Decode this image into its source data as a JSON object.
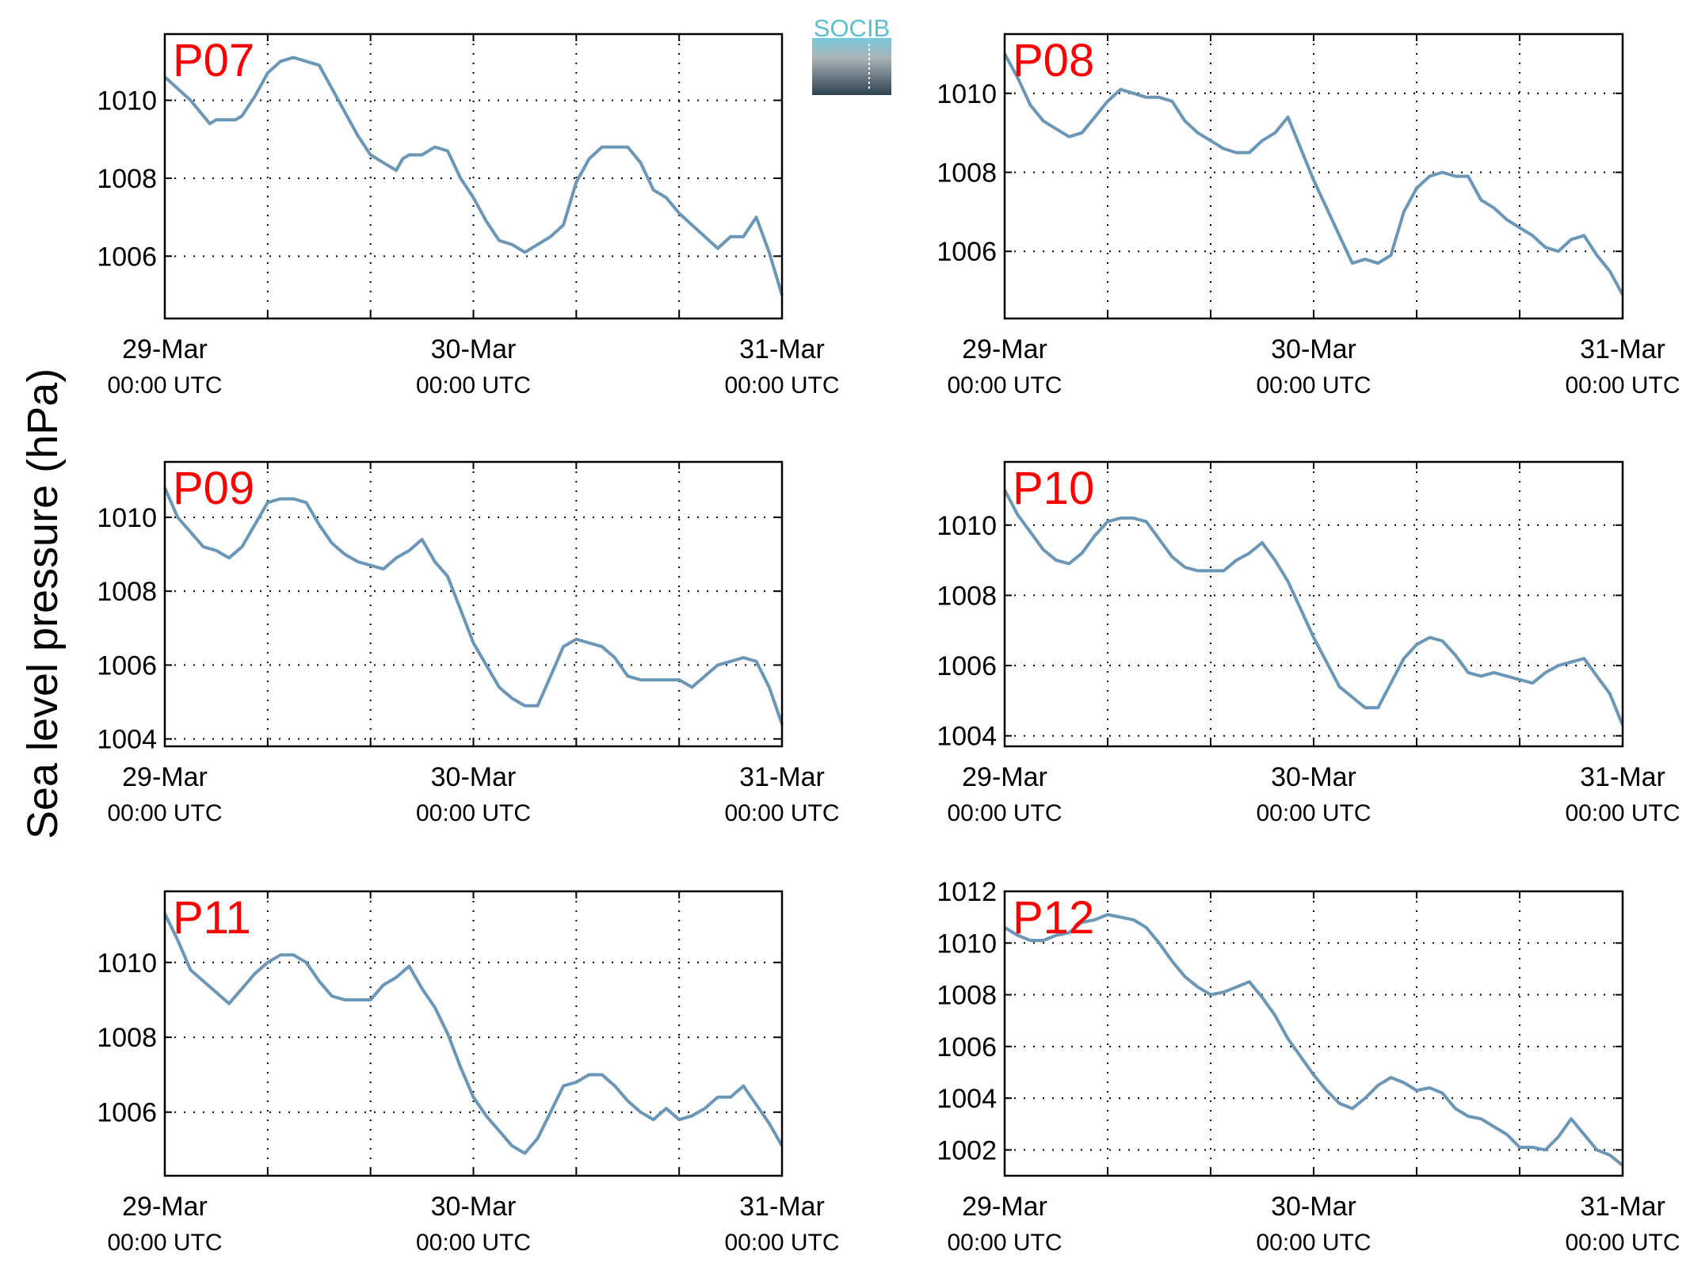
{
  "figure": {
    "ylabel": "Sea level pressure (hPa)",
    "logo_text": "SOCIB",
    "line_color": "#6a96b8",
    "label_color": "#ff0000"
  },
  "chart_data": [
    {
      "type": "line",
      "name": "P07",
      "x_ticks": [
        {
          "day": "29-Mar",
          "time": "00:00 UTC"
        },
        {
          "day": "30-Mar",
          "time": "00:00 UTC"
        },
        {
          "day": "31-Mar",
          "time": "00:00 UTC"
        }
      ],
      "xlim": [
        0,
        48
      ],
      "ylim": [
        1004.4,
        1011.7
      ],
      "yticks": [
        1006,
        1008,
        1010
      ],
      "x": [
        0,
        1,
        2,
        3,
        3.5,
        4,
        5,
        5.5,
        6,
        7,
        8,
        9,
        10,
        11,
        12,
        13,
        14,
        15,
        16,
        17,
        18,
        18.5,
        19,
        20,
        21,
        22,
        23,
        24,
        25,
        26,
        27,
        28,
        29,
        30,
        31,
        32,
        33,
        34,
        35,
        36,
        37,
        38,
        39,
        40,
        41,
        42,
        43,
        44,
        45,
        46,
        47,
        48
      ],
      "y": [
        1010.6,
        1010.3,
        1010.0,
        1009.6,
        1009.4,
        1009.5,
        1009.5,
        1009.5,
        1009.6,
        1010.1,
        1010.7,
        1011.0,
        1011.1,
        1011.0,
        1010.9,
        1010.3,
        1009.7,
        1009.1,
        1008.6,
        1008.4,
        1008.2,
        1008.5,
        1008.6,
        1008.6,
        1008.8,
        1008.7,
        1008.0,
        1007.5,
        1006.9,
        1006.4,
        1006.3,
        1006.1,
        1006.3,
        1006.5,
        1006.8,
        1007.9,
        1008.5,
        1008.8,
        1008.8,
        1008.8,
        1008.4,
        1007.7,
        1007.5,
        1007.1,
        1006.8,
        1006.5,
        1006.2,
        1006.5,
        1006.5,
        1007.0,
        1006.1,
        1005.0
      ]
    },
    {
      "type": "line",
      "name": "P08",
      "x_ticks": [
        {
          "day": "29-Mar",
          "time": "00:00 UTC"
        },
        {
          "day": "30-Mar",
          "time": "00:00 UTC"
        },
        {
          "day": "31-Mar",
          "time": "00:00 UTC"
        }
      ],
      "xlim": [
        0,
        48
      ],
      "ylim": [
        1004.3,
        1011.5
      ],
      "yticks": [
        1006,
        1008,
        1010
      ],
      "x": [
        0,
        1,
        2,
        3,
        4,
        5,
        6,
        7,
        8,
        9,
        10,
        11,
        12,
        13,
        14,
        15,
        16,
        17,
        18,
        19,
        20,
        21,
        21.5,
        22,
        23,
        24,
        25,
        26,
        27,
        28,
        29,
        30,
        31,
        32,
        33,
        34,
        35,
        36,
        37,
        38,
        39,
        40,
        41,
        42,
        43,
        44,
        45,
        46,
        47,
        48
      ],
      "y": [
        1011.0,
        1010.4,
        1009.7,
        1009.3,
        1009.1,
        1008.9,
        1009.0,
        1009.4,
        1009.8,
        1010.1,
        1010.0,
        1009.9,
        1009.9,
        1009.8,
        1009.3,
        1009.0,
        1008.8,
        1008.6,
        1008.5,
        1008.5,
        1008.8,
        1009.0,
        1009.2,
        1009.4,
        1008.6,
        1007.8,
        1007.1,
        1006.4,
        1005.7,
        1005.8,
        1005.7,
        1005.9,
        1007.0,
        1007.6,
        1007.9,
        1008.0,
        1007.9,
        1007.9,
        1007.3,
        1007.1,
        1006.8,
        1006.6,
        1006.4,
        1006.1,
        1006.0,
        1006.3,
        1006.4,
        1005.9,
        1005.5,
        1004.9
      ]
    },
    {
      "type": "line",
      "name": "P09",
      "x_ticks": [
        {
          "day": "29-Mar",
          "time": "00:00 UTC"
        },
        {
          "day": "30-Mar",
          "time": "00:00 UTC"
        },
        {
          "day": "31-Mar",
          "time": "00:00 UTC"
        }
      ],
      "xlim": [
        0,
        48
      ],
      "ylim": [
        1003.8,
        1011.5
      ],
      "yticks": [
        1004,
        1006,
        1008,
        1010
      ],
      "x": [
        0,
        1,
        2,
        3,
        4,
        5,
        6,
        7,
        8,
        9,
        10,
        11,
        12,
        13,
        14,
        15,
        16,
        17,
        18,
        19,
        20,
        21,
        22,
        23,
        24,
        25,
        26,
        27,
        28,
        29,
        30,
        31,
        32,
        33,
        34,
        35,
        36,
        37,
        38,
        39,
        40,
        41,
        42,
        43,
        44,
        45,
        46,
        47,
        48
      ],
      "y": [
        1010.8,
        1010.0,
        1009.6,
        1009.2,
        1009.1,
        1008.9,
        1009.2,
        1009.8,
        1010.4,
        1010.5,
        1010.5,
        1010.4,
        1009.8,
        1009.3,
        1009.0,
        1008.8,
        1008.7,
        1008.6,
        1008.9,
        1009.1,
        1009.4,
        1008.8,
        1008.4,
        1007.5,
        1006.6,
        1006.0,
        1005.4,
        1005.1,
        1004.9,
        1004.9,
        1005.7,
        1006.5,
        1006.7,
        1006.6,
        1006.5,
        1006.2,
        1005.7,
        1005.6,
        1005.6,
        1005.6,
        1005.6,
        1005.4,
        1005.7,
        1006.0,
        1006.1,
        1006.2,
        1006.1,
        1005.4,
        1004.4
      ]
    },
    {
      "type": "line",
      "name": "P10",
      "x_ticks": [
        {
          "day": "29-Mar",
          "time": "00:00 UTC"
        },
        {
          "day": "30-Mar",
          "time": "00:00 UTC"
        },
        {
          "day": "31-Mar",
          "time": "00:00 UTC"
        }
      ],
      "xlim": [
        0,
        48
      ],
      "ylim": [
        1003.7,
        1011.8
      ],
      "yticks": [
        1004,
        1006,
        1008,
        1010
      ],
      "x": [
        0,
        1,
        2,
        3,
        4,
        5,
        6,
        7,
        8,
        9,
        10,
        11,
        12,
        13,
        14,
        15,
        16,
        17,
        18,
        19,
        20,
        21,
        22,
        23,
        24,
        25,
        26,
        27,
        28,
        29,
        30,
        31,
        32,
        33,
        34,
        35,
        36,
        37,
        38,
        39,
        40,
        41,
        42,
        43,
        44,
        45,
        46,
        47,
        48
      ],
      "y": [
        1011.0,
        1010.3,
        1009.8,
        1009.3,
        1009.0,
        1008.9,
        1009.2,
        1009.7,
        1010.1,
        1010.2,
        1010.2,
        1010.1,
        1009.6,
        1009.1,
        1008.8,
        1008.7,
        1008.7,
        1008.7,
        1009.0,
        1009.2,
        1009.5,
        1009.0,
        1008.4,
        1007.6,
        1006.8,
        1006.1,
        1005.4,
        1005.1,
        1004.8,
        1004.8,
        1005.5,
        1006.2,
        1006.6,
        1006.8,
        1006.7,
        1006.3,
        1005.8,
        1005.7,
        1005.8,
        1005.7,
        1005.6,
        1005.5,
        1005.8,
        1006.0,
        1006.1,
        1006.2,
        1005.7,
        1005.2,
        1004.3
      ]
    },
    {
      "type": "line",
      "name": "P11",
      "x_ticks": [
        {
          "day": "29-Mar",
          "time": "00:00 UTC"
        },
        {
          "day": "30-Mar",
          "time": "00:00 UTC"
        },
        {
          "day": "31-Mar",
          "time": "00:00 UTC"
        }
      ],
      "xlim": [
        0,
        48
      ],
      "ylim": [
        1004.3,
        1011.9
      ],
      "yticks": [
        1006,
        1008,
        1010
      ],
      "x": [
        0,
        1,
        2,
        3,
        4,
        5,
        6,
        7,
        8,
        9,
        10,
        11,
        12,
        13,
        14,
        15,
        16,
        17,
        18,
        19,
        20,
        21,
        22,
        23,
        24,
        25,
        26,
        27,
        28,
        29,
        30,
        31,
        32,
        33,
        34,
        35,
        36,
        37,
        38,
        39,
        40,
        41,
        42,
        43,
        44,
        45,
        46,
        47,
        48
      ],
      "y": [
        1011.3,
        1010.6,
        1009.8,
        1009.5,
        1009.2,
        1008.9,
        1009.3,
        1009.7,
        1010.0,
        1010.2,
        1010.2,
        1010.0,
        1009.5,
        1009.1,
        1009.0,
        1009.0,
        1009.0,
        1009.4,
        1009.6,
        1009.9,
        1009.3,
        1008.8,
        1008.1,
        1007.2,
        1006.4,
        1005.9,
        1005.5,
        1005.1,
        1004.9,
        1005.3,
        1006.0,
        1006.7,
        1006.8,
        1007.0,
        1007.0,
        1006.7,
        1006.3,
        1006.0,
        1005.8,
        1006.1,
        1005.8,
        1005.9,
        1006.1,
        1006.4,
        1006.4,
        1006.7,
        1006.2,
        1005.7,
        1005.1
      ]
    },
    {
      "type": "line",
      "name": "P12",
      "x_ticks": [
        {
          "day": "29-Mar",
          "time": "00:00 UTC"
        },
        {
          "day": "30-Mar",
          "time": "00:00 UTC"
        },
        {
          "day": "31-Mar",
          "time": "00:00 UTC"
        }
      ],
      "xlim": [
        0,
        48
      ],
      "ylim": [
        1001.0,
        1012.0
      ],
      "yticks": [
        1002,
        1004,
        1006,
        1008,
        1010,
        1012
      ],
      "x": [
        0,
        1,
        2,
        3,
        4,
        5,
        6,
        7,
        8,
        9,
        10,
        11,
        12,
        13,
        14,
        15,
        16,
        17,
        18,
        19,
        20,
        21,
        22,
        23,
        24,
        25,
        26,
        27,
        28,
        29,
        30,
        31,
        32,
        33,
        34,
        35,
        36,
        37,
        38,
        39,
        40,
        41,
        42,
        43,
        44,
        45,
        46,
        47,
        48
      ],
      "y": [
        1010.6,
        1010.3,
        1010.1,
        1010.1,
        1010.3,
        1010.4,
        1010.8,
        1010.9,
        1011.1,
        1011.0,
        1010.9,
        1010.6,
        1010.0,
        1009.3,
        1008.7,
        1008.3,
        1008.0,
        1008.1,
        1008.3,
        1008.5,
        1007.9,
        1007.2,
        1006.3,
        1005.6,
        1004.9,
        1004.3,
        1003.8,
        1003.6,
        1004.0,
        1004.5,
        1004.8,
        1004.6,
        1004.3,
        1004.4,
        1004.2,
        1003.6,
        1003.3,
        1003.2,
        1002.9,
        1002.6,
        1002.1,
        1002.1,
        1002.0,
        1002.5,
        1003.2,
        1002.6,
        1002.0,
        1001.8,
        1001.4
      ]
    }
  ]
}
